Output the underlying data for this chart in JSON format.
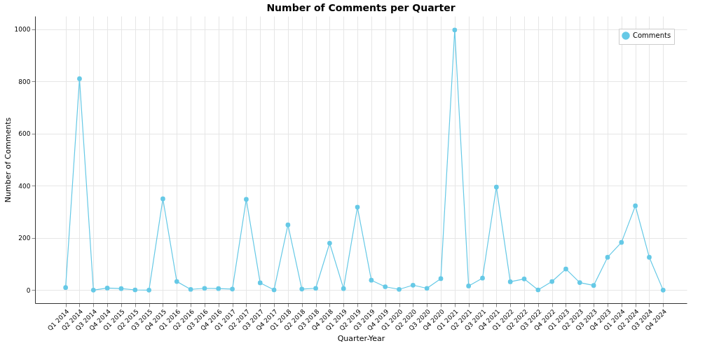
{
  "chart_data": {
    "type": "line",
    "title": "Number of Comments per Quarter",
    "xlabel": "Quarter-Year",
    "ylabel": "Number of Comments",
    "categories": [
      "Q1 2014",
      "Q2 2014",
      "Q3 2014",
      "Q4 2014",
      "Q1 2015",
      "Q2 2015",
      "Q3 2015",
      "Q4 2015",
      "Q1 2016",
      "Q2 2016",
      "Q3 2016",
      "Q4 2016",
      "Q1 2017",
      "Q2 2017",
      "Q3 2017",
      "Q4 2017",
      "Q1 2018",
      "Q2 2018",
      "Q3 2018",
      "Q4 2018",
      "Q1 2019",
      "Q2 2019",
      "Q3 2019",
      "Q4 2019",
      "Q1 2020",
      "Q2 2020",
      "Q3 2020",
      "Q4 2020",
      "Q1 2021",
      "Q2 2021",
      "Q3 2021",
      "Q4 2021",
      "Q1 2022",
      "Q2 2022",
      "Q3 2022",
      "Q4 2022",
      "Q1 2023",
      "Q2 2023",
      "Q3 2023",
      "Q4 2023",
      "Q1 2024",
      "Q2 2024",
      "Q3 2024",
      "Q4 2024"
    ],
    "series": [
      {
        "name": "Comments",
        "color": "#66c9e6",
        "values": [
          10,
          810,
          0,
          8,
          6,
          1,
          0,
          350,
          33,
          3,
          7,
          6,
          4,
          348,
          28,
          1,
          250,
          4,
          7,
          180,
          6,
          318,
          38,
          13,
          3,
          19,
          7,
          44,
          997,
          16,
          46,
          395,
          32,
          43,
          1,
          33,
          81,
          29,
          18,
          126,
          183,
          323,
          126,
          0
        ]
      }
    ],
    "ylim": [
      -50,
      1050
    ],
    "yticks": [
      0,
      200,
      400,
      600,
      800,
      1000
    ],
    "grid": true,
    "legend": "top right",
    "marker": "circle",
    "line_style": "solid"
  }
}
